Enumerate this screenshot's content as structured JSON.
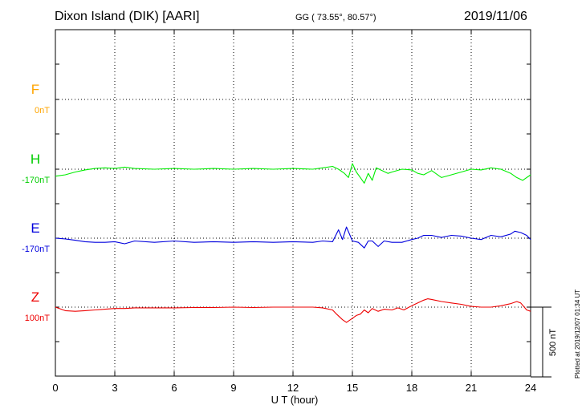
{
  "header": {
    "title": "Dixon Island (DIK)  [AARI]",
    "coords": "GG ( 73.55°,  80.57°)",
    "date": "2019/11/06"
  },
  "plotted_note": "Plotted at 2019/12/07 01:34 UT",
  "chart_data": {
    "type": "line",
    "xlabel": "U T (hour)",
    "xlim": [
      0,
      24
    ],
    "xticks": [
      0,
      3,
      6,
      9,
      12,
      15,
      18,
      21,
      24
    ],
    "scale_label": "500 nT",
    "grid": true,
    "series": [
      {
        "name": "F",
        "baseline_label": "0nT",
        "color": "#ffa500",
        "label_color": "#ffa500",
        "x": [],
        "y": []
      },
      {
        "name": "H",
        "baseline_label": "-170nT",
        "color": "#00ee00",
        "label_color": "#00cc00",
        "x": [
          0,
          0.5,
          1,
          1.5,
          2,
          2.5,
          3,
          3.5,
          4,
          5,
          6,
          7,
          8,
          9,
          10,
          11,
          12,
          13,
          13.5,
          14,
          14.3,
          14.6,
          14.8,
          15,
          15.2,
          15.4,
          15.6,
          15.8,
          16,
          16.2,
          16.5,
          16.8,
          17,
          17.5,
          18,
          18.3,
          18.6,
          19,
          19.5,
          20,
          20.5,
          21,
          21.5,
          22,
          22.5,
          23,
          23.3,
          23.6,
          24
        ],
        "y": [
          -50,
          -40,
          -20,
          -5,
          5,
          10,
          5,
          15,
          5,
          0,
          5,
          0,
          5,
          0,
          5,
          0,
          5,
          0,
          10,
          20,
          0,
          -30,
          -60,
          40,
          -20,
          -60,
          -100,
          -30,
          -80,
          10,
          -10,
          -30,
          -20,
          0,
          -5,
          -30,
          -40,
          -10,
          -60,
          -40,
          -20,
          0,
          -5,
          10,
          0,
          -30,
          -60,
          -80,
          -40
        ]
      },
      {
        "name": "E",
        "baseline_label": "-170nT",
        "color": "#0000dd",
        "label_color": "#0000dd",
        "x": [
          0,
          0.5,
          1,
          1.5,
          2,
          2.5,
          3,
          3.5,
          4,
          5,
          6,
          7,
          8,
          9,
          10,
          11,
          12,
          13,
          13.5,
          14,
          14.3,
          14.5,
          14.7,
          15,
          15.3,
          15.6,
          15.8,
          16,
          16.3,
          16.6,
          17,
          17.5,
          18,
          18.3,
          18.6,
          19,
          19.5,
          20,
          20.5,
          21,
          21.5,
          22,
          22.5,
          23,
          23.2,
          23.5,
          23.8,
          24
        ],
        "y": [
          0,
          -5,
          -15,
          -25,
          -30,
          -30,
          -25,
          -40,
          -20,
          -30,
          -20,
          -30,
          -25,
          -30,
          -25,
          -30,
          -25,
          -30,
          -20,
          -25,
          60,
          -10,
          80,
          -20,
          -30,
          -70,
          -20,
          -20,
          -60,
          -20,
          -30,
          -30,
          -10,
          0,
          20,
          20,
          5,
          20,
          15,
          0,
          -10,
          20,
          10,
          30,
          50,
          40,
          20,
          -10
        ]
      },
      {
        "name": "Z",
        "baseline_label": "100nT",
        "color": "#ee0000",
        "label_color": "#ee0000",
        "x": [
          0,
          0.5,
          1,
          1.5,
          2,
          2.5,
          3,
          3.5,
          4,
          5,
          6,
          7,
          8,
          9,
          10,
          11,
          12,
          13,
          13.5,
          14,
          14.2,
          14.5,
          14.7,
          15,
          15.2,
          15.4,
          15.6,
          15.8,
          16,
          16.3,
          16.6,
          17,
          17.3,
          17.6,
          18,
          18.3,
          18.6,
          18.8,
          19,
          19.5,
          20,
          20.5,
          21,
          21.5,
          22,
          22.5,
          23,
          23.3,
          23.5,
          23.8,
          24
        ],
        "y": [
          0,
          -25,
          -30,
          -25,
          -20,
          -15,
          -10,
          -10,
          -5,
          -5,
          -5,
          -3,
          -3,
          0,
          -3,
          0,
          0,
          0,
          -5,
          -20,
          -50,
          -90,
          -110,
          -80,
          -60,
          -50,
          -20,
          -40,
          -10,
          -30,
          -15,
          -20,
          -5,
          -20,
          10,
          30,
          50,
          60,
          55,
          40,
          30,
          20,
          5,
          0,
          0,
          10,
          25,
          40,
          30,
          -20,
          -30
        ]
      }
    ]
  }
}
